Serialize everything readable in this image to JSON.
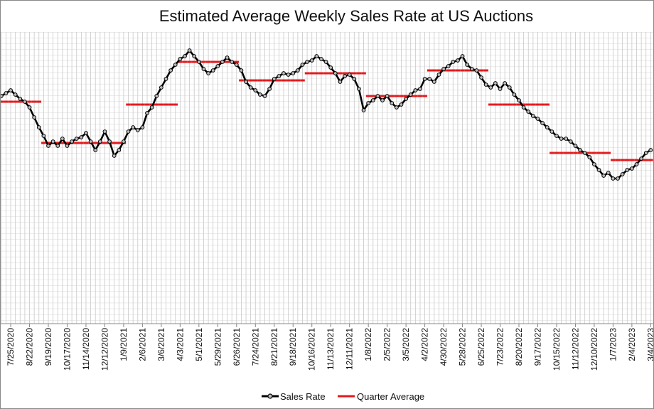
{
  "chart_data": {
    "type": "line",
    "title": "Estimated Average Weekly Sales Rate at US Auctions",
    "categories": [
      null,
      null,
      "7/25/2020",
      null,
      null,
      null,
      "8/22/2020",
      null,
      null,
      null,
      "9/19/2020",
      null,
      null,
      null,
      "10/17/2020",
      null,
      null,
      null,
      "11/14/2020",
      null,
      null,
      null,
      "12/12/2020",
      null,
      null,
      null,
      "1/9/2021",
      null,
      null,
      null,
      "2/6/2021",
      null,
      null,
      null,
      "3/6/2021",
      null,
      null,
      null,
      "4/3/2021",
      null,
      null,
      null,
      "5/1/2021",
      null,
      null,
      null,
      "5/29/2021",
      null,
      null,
      null,
      "6/26/2021",
      null,
      null,
      null,
      "7/24/2021",
      null,
      null,
      null,
      "8/21/2021",
      null,
      null,
      null,
      "9/18/2021",
      null,
      null,
      null,
      "10/16/2021",
      null,
      null,
      null,
      "11/13/2021",
      null,
      null,
      null,
      "12/11/2021",
      null,
      null,
      null,
      "1/8/2022",
      null,
      null,
      null,
      "2/5/2022",
      null,
      null,
      null,
      "3/5/2022",
      null,
      null,
      null,
      "4/2/2022",
      null,
      null,
      null,
      "4/30/2022",
      null,
      null,
      null,
      "5/28/2022",
      null,
      null,
      null,
      "6/25/2022",
      null,
      null,
      null,
      "7/23/2022",
      null,
      null,
      null,
      "8/20/2022",
      null,
      null,
      null,
      "9/17/2022",
      null,
      null,
      null,
      "10/15/2022",
      null,
      null,
      null,
      "11/12/2022",
      null,
      null,
      null,
      "12/10/2022",
      null,
      null,
      null,
      "1/7/2023",
      null,
      null,
      null,
      "2/4/2023",
      null,
      null,
      null,
      "3/4/2023"
    ],
    "series": [
      {
        "name": "Sales Rate",
        "color": "#000000",
        "values": [
          80,
          81,
          82,
          80.5,
          79,
          78,
          76,
          72.5,
          69,
          66,
          62.5,
          64,
          62.5,
          65,
          62.5,
          64,
          65,
          65.5,
          67,
          64,
          61,
          64,
          67.5,
          64,
          59,
          61,
          64,
          67.5,
          69,
          68,
          69,
          74,
          76,
          80,
          83,
          86,
          89,
          91,
          93,
          94,
          96,
          94,
          92,
          89.5,
          88,
          89,
          90.5,
          92,
          93.5,
          92,
          91,
          89,
          85,
          83,
          82,
          80.5,
          80,
          82.5,
          86,
          87,
          88,
          87.5,
          88,
          89,
          91,
          92,
          92.5,
          94,
          93,
          92,
          90,
          88,
          85,
          87,
          87.5,
          86,
          82.5,
          75,
          77.5,
          78.5,
          80,
          78.5,
          80,
          77.5,
          76,
          77,
          79,
          80.5,
          82,
          82.5,
          86,
          86,
          85,
          87.5,
          89.5,
          90.5,
          92,
          92.5,
          94,
          91,
          89.5,
          89,
          86.5,
          84,
          83,
          84.5,
          82.5,
          84.5,
          83,
          80.5,
          78.5,
          76,
          74.5,
          73,
          72,
          70.5,
          69,
          67.5,
          66,
          65,
          65,
          64,
          62.5,
          61,
          60,
          58.5,
          56,
          54,
          52,
          53,
          51,
          51,
          52.5,
          54,
          54.5,
          56,
          58,
          60,
          61
        ]
      },
      {
        "name": "Quarter Average",
        "color": "#e41a1c",
        "values": [
          78,
          78,
          78,
          78,
          78,
          78,
          78,
          78,
          78,
          63.5,
          63.5,
          63.5,
          63.5,
          63.5,
          63.5,
          63.5,
          63.5,
          63.5,
          63.5,
          63.5,
          63.5,
          63.5,
          63.5,
          63.5,
          63.5,
          63.5,
          63.5,
          77,
          77,
          77,
          77,
          77,
          77,
          77,
          77,
          77,
          77,
          77,
          92,
          92,
          92,
          92,
          92,
          92,
          92,
          92,
          92,
          92,
          92,
          92,
          92,
          85.5,
          85.5,
          85.5,
          85.5,
          85.5,
          85.5,
          85.5,
          85.5,
          85.5,
          85.5,
          85.5,
          85.5,
          85.5,
          85.5,
          88,
          88,
          88,
          88,
          88,
          88,
          88,
          88,
          88,
          88,
          88,
          88,
          88,
          80,
          80,
          80,
          80,
          80,
          80,
          80,
          80,
          80,
          80,
          80,
          80,
          80,
          89,
          89,
          89,
          89,
          89,
          89,
          89,
          89,
          89,
          89,
          89,
          89,
          89,
          77,
          77,
          77,
          77,
          77,
          77,
          77,
          77,
          77,
          77,
          77,
          77,
          77,
          60,
          60,
          60,
          60,
          60,
          60,
          60,
          60,
          60,
          60,
          60,
          60,
          60,
          57.5,
          57.5,
          57.5,
          57.5,
          57.5,
          57.5,
          57.5,
          57.5,
          57.5
        ]
      }
    ],
    "ylim": [
      0,
      100
    ],
    "grid": true
  }
}
